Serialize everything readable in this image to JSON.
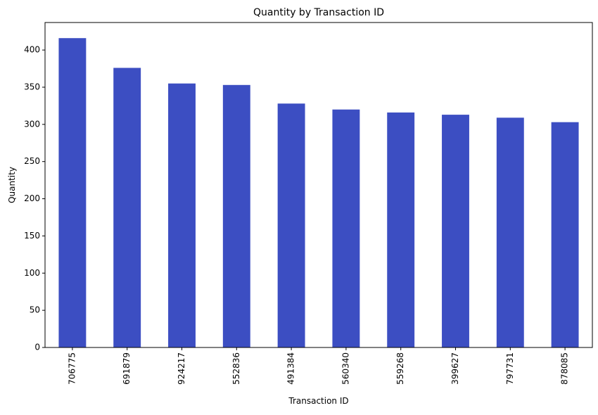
{
  "chart_data": {
    "type": "bar",
    "title": "Quantity by Transaction ID",
    "xlabel": "Transaction ID",
    "ylabel": "Quantity",
    "categories": [
      "706775",
      "691879",
      "924217",
      "552836",
      "491384",
      "560340",
      "559268",
      "399627",
      "797731",
      "878085"
    ],
    "values": [
      416,
      376,
      355,
      353,
      328,
      320,
      316,
      313,
      309,
      303
    ],
    "ylim": [
      0,
      437
    ],
    "yticks": [
      0,
      50,
      100,
      150,
      200,
      250,
      300,
      350,
      400
    ],
    "grid": false,
    "legend": "none",
    "bar_color": "#3c4ec2"
  }
}
